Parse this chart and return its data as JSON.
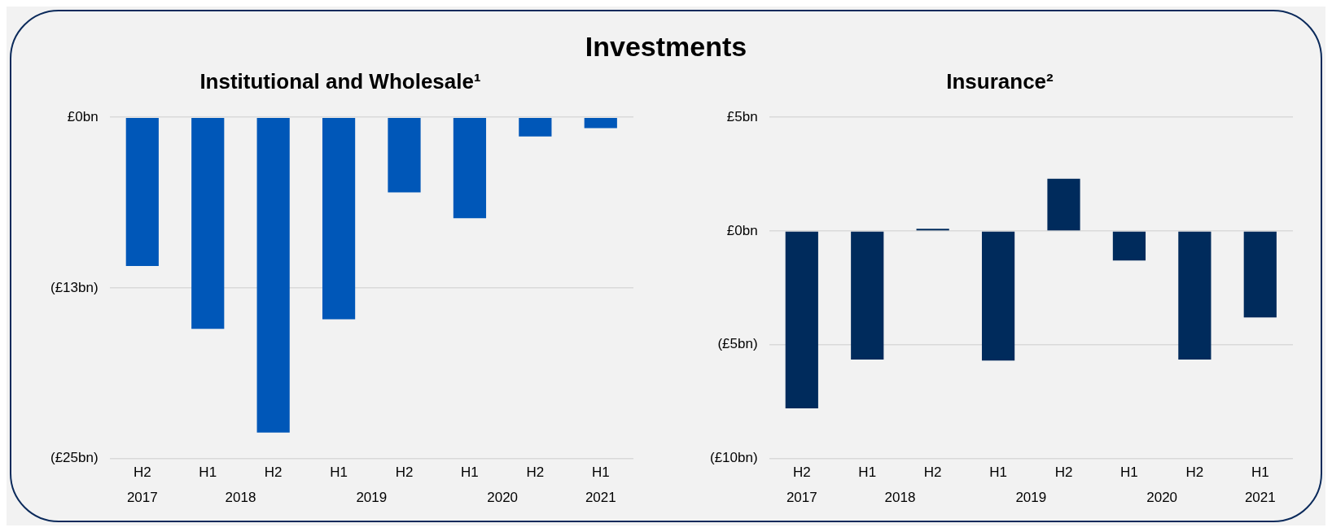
{
  "chart_data": [
    {
      "type": "bar",
      "title": "Investments",
      "subtitle": "Institutional and Wholesale¹",
      "categories": [
        "H2",
        "H1",
        "H2",
        "H1",
        "H2",
        "H1",
        "H2",
        "H1"
      ],
      "annotations": [
        "2017",
        "2018",
        "2019",
        "2020",
        "2021"
      ],
      "series": [
        {
          "color": "#0057b8",
          "values": [
            -10.9,
            -15.5,
            -23.1,
            -14.8,
            -5.5,
            -7.4,
            -1.4,
            -0.8
          ]
        }
      ],
      "ylim": [
        -25,
        0
      ],
      "yticks": [
        {
          "value": 0,
          "label": "£0bn"
        },
        {
          "value": -12.5,
          "label": "(£13bn)"
        },
        {
          "value": -25,
          "label": "(£25bn)"
        }
      ],
      "grid": "y",
      "legend": false
    },
    {
      "type": "bar",
      "subtitle": "Insurance²",
      "categories": [
        "H2",
        "H1",
        "H2",
        "H1",
        "H2",
        "H1",
        "H2",
        "H1"
      ],
      "annotations": [
        "2017",
        "2018",
        "2019",
        "2020",
        "2021"
      ],
      "series": [
        {
          "color": "#002b5c",
          "values": [
            -7.8,
            -5.65,
            0.1,
            -5.7,
            2.3,
            -1.3,
            -5.65,
            -3.8
          ]
        }
      ],
      "ylim": [
        -10,
        5
      ],
      "yticks": [
        {
          "value": 5,
          "label": "£5bn"
        },
        {
          "value": 0,
          "label": "£0bn"
        },
        {
          "value": -5,
          "label": "(£5bn)"
        },
        {
          "value": -10,
          "label": "(£10bn)"
        }
      ],
      "grid": "y",
      "legend": false
    }
  ]
}
